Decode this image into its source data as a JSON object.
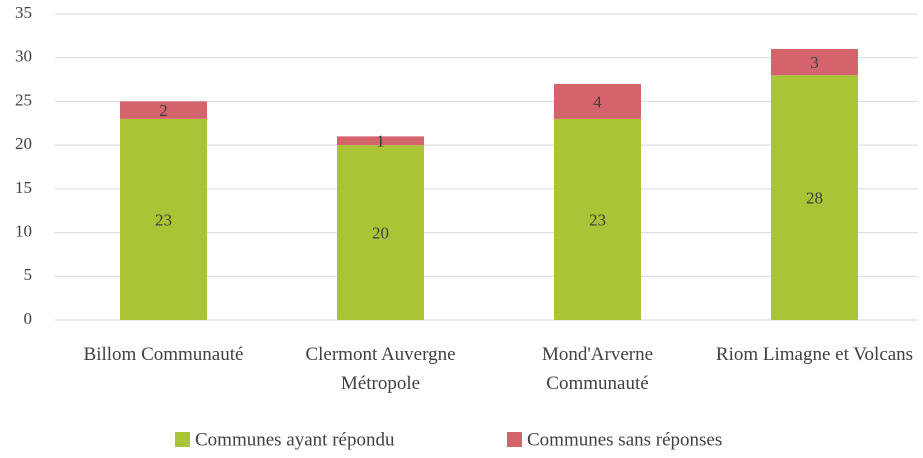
{
  "chart_data": {
    "type": "stacked_bar",
    "categories": [
      "Billom Communauté",
      "Clermont Auvergne Métropole",
      "Mond'Arverne Communauté",
      "Riom Limagne et Volcans"
    ],
    "series": [
      {
        "name": "Communes ayant répondu",
        "color": "#a9c434",
        "values": [
          23,
          20,
          23,
          28
        ]
      },
      {
        "name": "Communes sans réponses",
        "color": "#d5636b",
        "values": [
          2,
          1,
          4,
          3
        ]
      }
    ],
    "ylim": [
      0,
      35
    ],
    "yticks": [
      0,
      5,
      10,
      15,
      20,
      25,
      30,
      35
    ],
    "grid": true,
    "legend": "bottom"
  }
}
